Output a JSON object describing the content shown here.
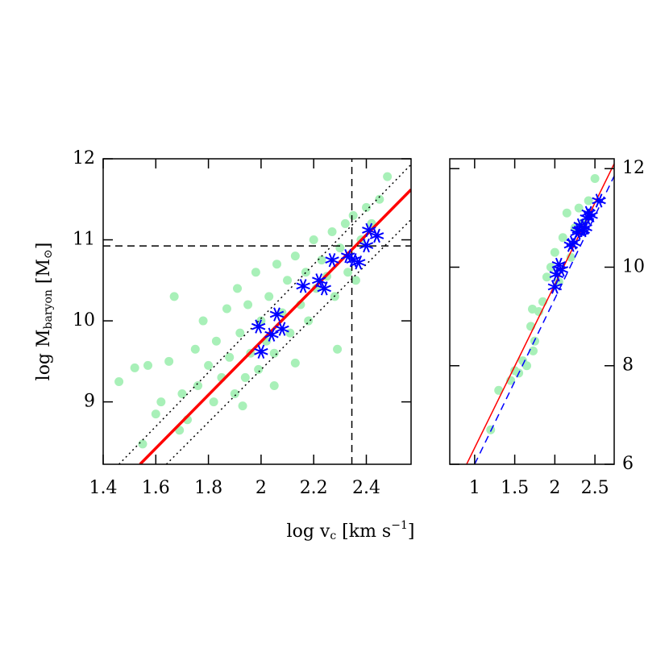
{
  "chart_data": [
    {
      "type": "scatter",
      "xlabel": [
        "log v",
        "c",
        " [km s",
        "−1",
        "]"
      ],
      "ylabel": [
        "log M",
        "baryon",
        " [M",
        "⊙",
        "]"
      ],
      "xlim": [
        1.4,
        2.57
      ],
      "ylim": [
        8.23,
        12
      ],
      "xticks": [
        1.4,
        1.6,
        1.8,
        2,
        2.2,
        2.4
      ],
      "yticks": [
        9,
        10,
        11,
        12
      ],
      "yaxis_side": "left",
      "series": [
        {
          "marker": "dot",
          "color": "#a8f0b8",
          "x": [
            1.46,
            1.52,
            1.57,
            1.6,
            1.62,
            1.65,
            1.67,
            1.7,
            1.72,
            1.75,
            1.76,
            1.78,
            1.8,
            1.82,
            1.83,
            1.85,
            1.87,
            1.88,
            1.9,
            1.91,
            1.92,
            1.94,
            1.95,
            1.96,
            1.98,
            1.99,
            2.0,
            2.02,
            2.03,
            2.05,
            2.06,
            2.08,
            2.1,
            2.11,
            2.13,
            2.15,
            2.17,
            2.18,
            2.2,
            2.21,
            2.23,
            2.25,
            2.27,
            2.28,
            2.3,
            2.32,
            2.33,
            2.35,
            2.36,
            2.38,
            2.4,
            2.42,
            2.45,
            2.48,
            2.29,
            2.13,
            1.69,
            1.55,
            1.93,
            2.05
          ],
          "values": [
            9.25,
            9.42,
            9.45,
            8.85,
            9.0,
            9.5,
            10.3,
            9.1,
            8.78,
            9.65,
            9.2,
            10.0,
            9.45,
            9.0,
            9.75,
            9.3,
            10.15,
            9.55,
            9.1,
            10.4,
            9.85,
            9.3,
            10.2,
            9.6,
            10.6,
            9.4,
            10.0,
            9.75,
            10.3,
            9.6,
            10.7,
            10.1,
            10.5,
            9.85,
            10.8,
            10.2,
            10.6,
            10.0,
            11.0,
            10.4,
            10.75,
            10.55,
            11.1,
            10.3,
            10.9,
            11.2,
            10.6,
            11.3,
            10.5,
            11.0,
            11.4,
            11.2,
            11.5,
            11.78,
            9.65,
            9.48,
            8.65,
            8.48,
            8.95,
            9.2
          ]
        },
        {
          "marker": "star",
          "color": "#0000ff",
          "x": [
            1.99,
            2.0,
            2.04,
            2.06,
            2.08,
            2.16,
            2.22,
            2.24,
            2.27,
            2.33,
            2.35,
            2.37,
            2.4,
            2.41,
            2.44
          ],
          "values": [
            9.93,
            9.62,
            9.83,
            10.08,
            9.9,
            10.43,
            10.5,
            10.4,
            10.75,
            10.8,
            10.75,
            10.72,
            10.93,
            11.12,
            11.05
          ]
        },
        {
          "marker": "line",
          "style": "dotted",
          "width": 1.5,
          "color": "#000000",
          "x": [
            1.46,
            2.57
          ],
          "values": [
            8.23,
            11.93
          ]
        },
        {
          "marker": "line",
          "style": "dotted",
          "width": 1.5,
          "color": "#000000",
          "x": [
            1.64,
            2.57
          ],
          "values": [
            8.23,
            11.25
          ]
        },
        {
          "marker": "line",
          "style": "solid",
          "width": 3.5,
          "color": "#ff0000",
          "x": [
            1.54,
            2.57
          ],
          "values": [
            8.23,
            11.62
          ]
        },
        {
          "marker": "line",
          "style": "dashed",
          "width": 1.5,
          "color": "#000000",
          "x": [
            2.345,
            2.345
          ],
          "values": [
            8.23,
            12
          ]
        },
        {
          "marker": "line",
          "style": "dashed",
          "width": 1.5,
          "color": "#000000",
          "x": [
            1.4,
            2.57
          ],
          "values": [
            10.925,
            10.925
          ]
        }
      ]
    },
    {
      "type": "scatter",
      "xlim": [
        0.69,
        2.74
      ],
      "ylim": [
        6,
        12.2
      ],
      "xticks": [
        1,
        1.5,
        2,
        2.5
      ],
      "yticks": [
        6,
        8,
        10,
        12
      ],
      "yaxis_side": "right",
      "series": [
        {
          "marker": "dot",
          "color": "#a8f0b8",
          "x": [
            1.2,
            1.3,
            1.45,
            1.5,
            1.55,
            1.6,
            1.65,
            1.7,
            1.72,
            1.75,
            1.8,
            1.85,
            1.9,
            1.95,
            2.0,
            2.05,
            2.1,
            2.15,
            2.2,
            2.25,
            2.3,
            2.35,
            2.42,
            2.5,
            1.73
          ],
          "values": [
            6.7,
            7.5,
            7.7,
            7.9,
            7.85,
            8.1,
            8.0,
            8.8,
            9.15,
            8.5,
            9.1,
            9.3,
            9.8,
            10.0,
            10.3,
            9.7,
            10.6,
            11.1,
            10.2,
            10.8,
            11.2,
            10.9,
            11.35,
            11.8,
            8.3
          ]
        },
        {
          "marker": "star",
          "color": "#0000ff",
          "x": [
            2.0,
            2.02,
            2.05,
            2.08,
            2.2,
            2.23,
            2.28,
            2.32,
            2.35,
            2.38,
            2.4,
            2.42,
            2.45,
            2.55,
            2.3
          ],
          "values": [
            9.6,
            9.85,
            10.05,
            9.95,
            10.45,
            10.5,
            10.7,
            10.85,
            10.75,
            10.8,
            11.0,
            11.1,
            11.05,
            11.35,
            10.75
          ]
        },
        {
          "marker": "line",
          "style": "solid",
          "width": 1.5,
          "color": "#ff0000",
          "x": [
            0.9,
            2.74
          ],
          "values": [
            6,
            12.1
          ]
        },
        {
          "marker": "line",
          "style": "dashed",
          "width": 1.5,
          "color": "#0000ff",
          "x": [
            1.0,
            2.74
          ],
          "values": [
            6,
            11.85
          ]
        }
      ]
    }
  ]
}
